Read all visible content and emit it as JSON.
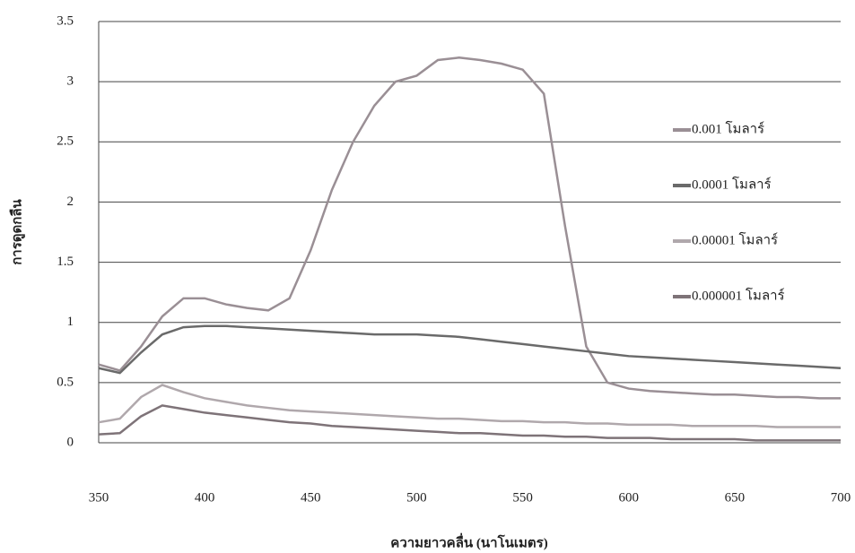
{
  "chart_data": {
    "type": "line",
    "xlabel": "ความยาวคลื่น (นาโนเมตร)",
    "ylabel": "การดูดกลืน",
    "x": [
      350,
      360,
      370,
      380,
      390,
      400,
      410,
      420,
      430,
      440,
      450,
      460,
      470,
      480,
      490,
      500,
      510,
      520,
      530,
      540,
      550,
      560,
      570,
      580,
      590,
      600,
      610,
      620,
      630,
      640,
      650,
      660,
      670,
      680,
      690,
      700
    ],
    "series": [
      {
        "name": "0.001 โมลาร์",
        "color": "#9a8f95",
        "values": [
          0.65,
          0.6,
          0.8,
          1.05,
          1.2,
          1.2,
          1.15,
          1.12,
          1.1,
          1.2,
          1.6,
          2.1,
          2.5,
          2.8,
          3.0,
          3.05,
          3.18,
          3.2,
          3.18,
          3.15,
          3.1,
          2.9,
          1.8,
          0.8,
          0.5,
          0.45,
          0.43,
          0.42,
          0.41,
          0.4,
          0.4,
          0.39,
          0.38,
          0.38,
          0.37,
          0.37
        ]
      },
      {
        "name": "0.0001 โมลาร์",
        "color": "#6a6a6a",
        "values": [
          0.62,
          0.58,
          0.75,
          0.9,
          0.96,
          0.97,
          0.97,
          0.96,
          0.95,
          0.94,
          0.93,
          0.92,
          0.91,
          0.9,
          0.9,
          0.9,
          0.89,
          0.88,
          0.86,
          0.84,
          0.82,
          0.8,
          0.78,
          0.76,
          0.74,
          0.72,
          0.71,
          0.7,
          0.69,
          0.68,
          0.67,
          0.66,
          0.65,
          0.64,
          0.63,
          0.62
        ]
      },
      {
        "name": "0.00001 โมลาร์",
        "color": "#b0a8ac",
        "values": [
          0.17,
          0.2,
          0.38,
          0.48,
          0.42,
          0.37,
          0.34,
          0.31,
          0.29,
          0.27,
          0.26,
          0.25,
          0.24,
          0.23,
          0.22,
          0.21,
          0.2,
          0.2,
          0.19,
          0.18,
          0.18,
          0.17,
          0.17,
          0.16,
          0.16,
          0.15,
          0.15,
          0.15,
          0.14,
          0.14,
          0.14,
          0.14,
          0.13,
          0.13,
          0.13,
          0.13
        ]
      },
      {
        "name": "0.000001 โมลาร์",
        "color": "#7e7378",
        "values": [
          0.07,
          0.08,
          0.22,
          0.31,
          0.28,
          0.25,
          0.23,
          0.21,
          0.19,
          0.17,
          0.16,
          0.14,
          0.13,
          0.12,
          0.11,
          0.1,
          0.09,
          0.08,
          0.08,
          0.07,
          0.06,
          0.06,
          0.05,
          0.05,
          0.04,
          0.04,
          0.04,
          0.03,
          0.03,
          0.03,
          0.03,
          0.02,
          0.02,
          0.02,
          0.02,
          0.02
        ]
      }
    ],
    "xlim": [
      350,
      700
    ],
    "xticks": [
      350,
      400,
      450,
      500,
      550,
      600,
      650,
      700
    ],
    "ylim": [
      0,
      3.5
    ],
    "yticks": [
      0,
      0.5,
      1,
      1.5,
      2,
      2.5,
      3,
      3.5
    ],
    "grid": true,
    "legend": "right"
  }
}
